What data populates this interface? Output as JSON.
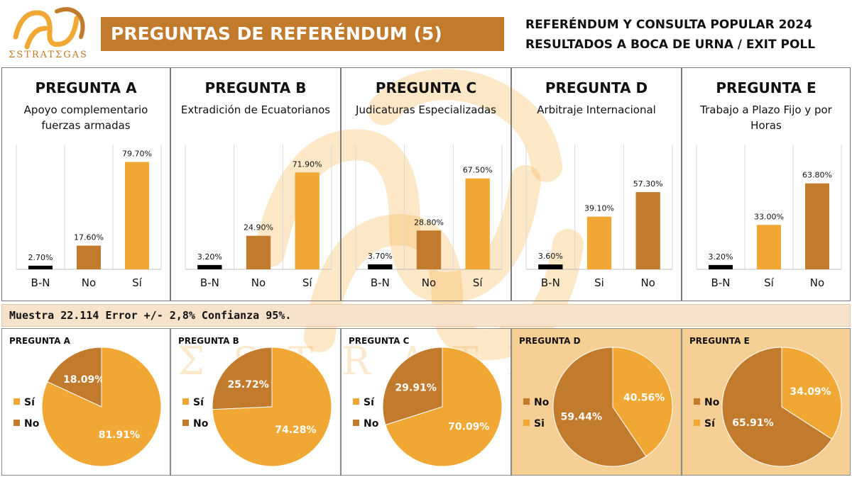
{
  "header": {
    "logo_text": "ΣSTRATΣGAS",
    "title": "PREGUNTAS DE REFERÉNDUM (5)",
    "subtitle_line1": "REFERÉNDUM Y CONSULTA POPULAR 2024",
    "subtitle_line2": "RESULTADOS A BOCA DE URNA / EXIT POLL"
  },
  "watermark_text": "ΣSTRATΣGAS",
  "note": "Muestra 22.114 Error +/- 2,8% Confianza 95%.",
  "colors": {
    "brand": "#c27a2c",
    "orange_light": "#f0a733",
    "orange_dark": "#c27a2c",
    "bn_black": "#000000",
    "highlight_panel_bg": "#f5cf93"
  },
  "chart_data": [
    {
      "type": "bar",
      "title": "PREGUNTA A",
      "subtitle": "Apoyo complementario fuerzas armadas",
      "categories": [
        "B-N",
        "No",
        "Sí"
      ],
      "values": [
        2.7,
        17.6,
        79.7
      ],
      "value_labels": [
        "2.70%",
        "17.60%",
        "79.70%"
      ],
      "bar_colors": [
        "#000000",
        "#c27a2c",
        "#f0a733"
      ],
      "ylim": [
        0,
        100
      ],
      "grid": "vertical"
    },
    {
      "type": "bar",
      "title": "PREGUNTA B",
      "subtitle": "Extradición de Ecuatorianos",
      "categories": [
        "B-N",
        "No",
        "Sí"
      ],
      "values": [
        3.2,
        24.9,
        71.9
      ],
      "value_labels": [
        "3.20%",
        "24.90%",
        "71.90%"
      ],
      "bar_colors": [
        "#000000",
        "#c27a2c",
        "#f0a733"
      ],
      "ylim": [
        0,
        100
      ],
      "grid": "vertical"
    },
    {
      "type": "bar",
      "title": "PREGUNTA C",
      "subtitle": "Judicaturas Especializadas",
      "categories": [
        "B-N",
        "No",
        "Sí"
      ],
      "values": [
        3.7,
        28.8,
        67.5
      ],
      "value_labels": [
        "3.70%",
        "28.80%",
        "67.50%"
      ],
      "bar_colors": [
        "#000000",
        "#c27a2c",
        "#f0a733"
      ],
      "ylim": [
        0,
        100
      ],
      "grid": "vertical"
    },
    {
      "type": "bar",
      "title": "PREGUNTA D",
      "subtitle": "Arbitraje Internacional",
      "categories": [
        "B-N",
        "Si",
        "No"
      ],
      "values": [
        3.6,
        39.1,
        57.3
      ],
      "value_labels": [
        "3.60%",
        "39.10%",
        "57.30%"
      ],
      "bar_colors": [
        "#000000",
        "#f0a733",
        "#c27a2c"
      ],
      "ylim": [
        0,
        100
      ],
      "grid": "vertical"
    },
    {
      "type": "bar",
      "title": "PREGUNTA E",
      "subtitle": "Trabajo a Plazo Fijo y por Horas",
      "categories": [
        "B-N",
        "Sí",
        "No"
      ],
      "values": [
        3.2,
        33.0,
        63.8
      ],
      "value_labels": [
        "3.20%",
        "33.00%",
        "63.80%"
      ],
      "bar_colors": [
        "#000000",
        "#f0a733",
        "#c27a2c"
      ],
      "ylim": [
        0,
        100
      ],
      "grid": "vertical"
    },
    {
      "type": "pie",
      "title": "PREGUNTA A",
      "legend": [
        "Sí",
        "No"
      ],
      "legend_colors": [
        "#f0a733",
        "#c27a2c"
      ],
      "slices": [
        {
          "label": "No",
          "value": 18.09,
          "text": "18.09%",
          "color": "#c27a2c"
        },
        {
          "label": "Sí",
          "value": 81.91,
          "text": "81.91%",
          "color": "#f0a733"
        }
      ]
    },
    {
      "type": "pie",
      "title": "PREGUNTA B",
      "legend": [
        "Sí",
        "No"
      ],
      "legend_colors": [
        "#f0a733",
        "#c27a2c"
      ],
      "slices": [
        {
          "label": "No",
          "value": 25.72,
          "text": "25.72%",
          "color": "#c27a2c"
        },
        {
          "label": "Sí",
          "value": 74.28,
          "text": "74.28%",
          "color": "#f0a733"
        }
      ]
    },
    {
      "type": "pie",
      "title": "PREGUNTA C",
      "legend": [
        "Sí",
        "No"
      ],
      "legend_colors": [
        "#f0a733",
        "#c27a2c"
      ],
      "slices": [
        {
          "label": "No",
          "value": 29.91,
          "text": "29.91%",
          "color": "#c27a2c"
        },
        {
          "label": "Sí",
          "value": 70.09,
          "text": "70.09%",
          "color": "#f0a733"
        }
      ]
    },
    {
      "type": "pie",
      "title": "PREGUNTA D",
      "legend": [
        "No",
        "Si"
      ],
      "legend_colors": [
        "#c27a2c",
        "#f0a733"
      ],
      "highlight": true,
      "slices": [
        {
          "label": "No",
          "value": 59.44,
          "text": "59.44%",
          "color": "#c27a2c"
        },
        {
          "label": "Si",
          "value": 40.56,
          "text": "40.56%",
          "color": "#f0a733"
        }
      ]
    },
    {
      "type": "pie",
      "title": "PREGUNTA E",
      "legend": [
        "No",
        "Sí"
      ],
      "legend_colors": [
        "#c27a2c",
        "#f0a733"
      ],
      "highlight": true,
      "slices": [
        {
          "label": "No",
          "value": 65.91,
          "text": "65.91%",
          "color": "#c27a2c"
        },
        {
          "label": "Sí",
          "value": 34.09,
          "text": "34.09%",
          "color": "#f0a733"
        }
      ]
    }
  ]
}
